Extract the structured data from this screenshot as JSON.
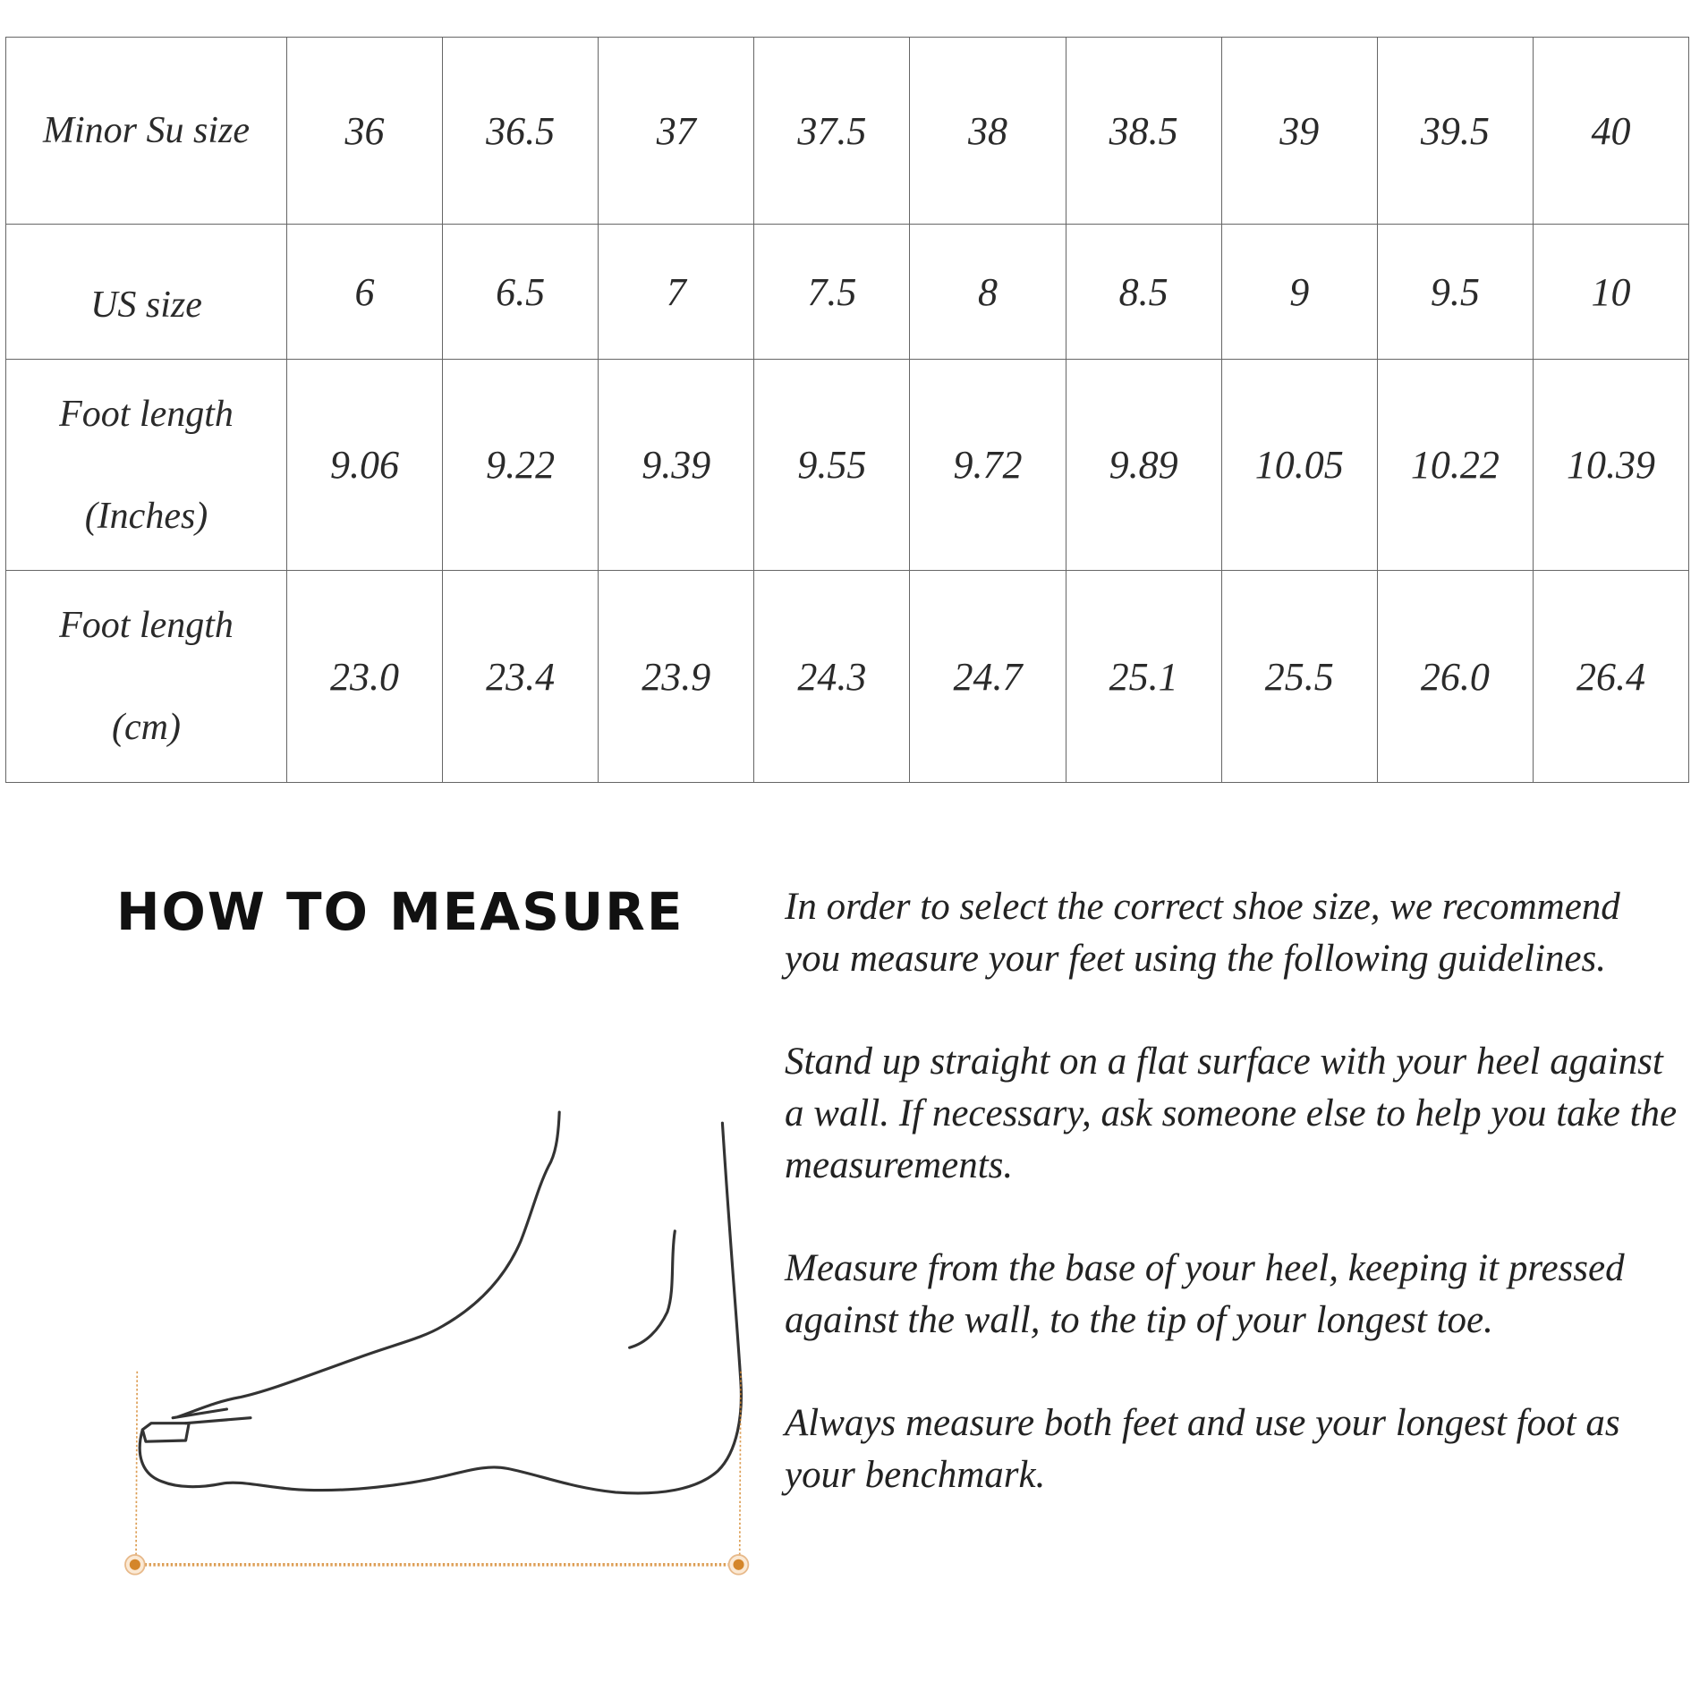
{
  "size_chart": {
    "rows": [
      {
        "label": "Minor Su size",
        "values": [
          "36",
          "36.5",
          "37",
          "37.5",
          "38",
          "38.5",
          "39",
          "39.5",
          "40"
        ]
      },
      {
        "label": "US size",
        "values": [
          "6",
          "6.5",
          "7",
          "7.5",
          "8",
          "8.5",
          "9",
          "9.5",
          "10"
        ]
      },
      {
        "label_lines": [
          "Foot length",
          "(Inches)"
        ],
        "values": [
          "9.06",
          "9.22",
          "9.39",
          "9.55",
          "9.72",
          "9.89",
          "10.05",
          "10.22",
          "10.39"
        ]
      },
      {
        "label_lines": [
          "Foot length",
          "(cm)"
        ],
        "values": [
          "23.0",
          "23.4",
          "23.9",
          "24.3",
          "24.7",
          "25.1",
          "25.5",
          "26.0",
          "26.4"
        ]
      }
    ]
  },
  "how_to_measure": {
    "title": "HOW TO MEASURE",
    "paragraphs": [
      "In order to select the correct shoe size, we recommend you measure your feet using the following guidelines.",
      "Stand up straight on a flat surface with your heel against a wall. If necessary, ask someone else to help you take the measurements.",
      "Measure from the base of your heel, keeping it pressed against the wall, to the tip of your longest toe.",
      "Always measure both feet and use your longest foot as your benchmark."
    ],
    "illustration": "foot-side-view-icon",
    "accent_color": "#d4862a"
  }
}
